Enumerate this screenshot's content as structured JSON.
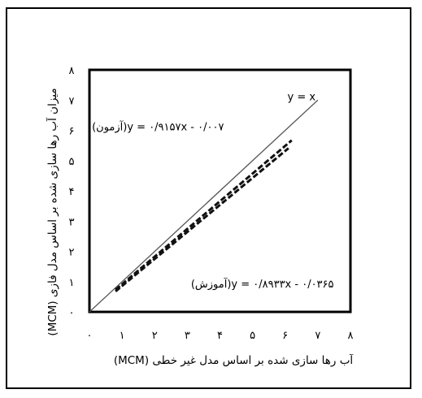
{
  "chart_data": {
    "type": "line",
    "xlabel": "آب رها سازی شده بر اساس مدل غیر خطی (MCM)",
    "ylabel": "میزان آب رها سازی شده بر اساس مدل فازی (MCM)",
    "xlim": [
      0,
      8
    ],
    "ylim": [
      0,
      8
    ],
    "x_ticks": [
      {
        "value": 0,
        "label": "۰"
      },
      {
        "value": 1,
        "label": "۱"
      },
      {
        "value": 2,
        "label": "۲"
      },
      {
        "value": 3,
        "label": "۳"
      },
      {
        "value": 4,
        "label": "۴"
      },
      {
        "value": 5,
        "label": "۵"
      },
      {
        "value": 6,
        "label": "۶"
      },
      {
        "value": 7,
        "label": "۷"
      },
      {
        "value": 8,
        "label": "۸"
      }
    ],
    "y_ticks": [
      {
        "value": 0,
        "label": "۰"
      },
      {
        "value": 1,
        "label": "۱"
      },
      {
        "value": 2,
        "label": "۲"
      },
      {
        "value": 3,
        "label": "۳"
      },
      {
        "value": 4,
        "label": "۴"
      },
      {
        "value": 5,
        "label": "۵"
      },
      {
        "value": 6,
        "label": "۶"
      },
      {
        "value": 7,
        "label": "۷"
      },
      {
        "value": 8,
        "label": "۸"
      }
    ],
    "grid": false,
    "series": [
      {
        "name": "y = x",
        "style": "solid",
        "color": "#555555",
        "x": [
          0,
          7
        ],
        "y": [
          0,
          7
        ]
      },
      {
        "name": "آزمون",
        "style": "dashed",
        "color": "#111111",
        "x": [
          0.8,
          6.2
        ],
        "y": [
          0.73,
          5.67
        ]
      },
      {
        "name": "آموزش",
        "style": "dashed",
        "color": "#111111",
        "x": [
          0.8,
          6.1
        ],
        "y": [
          0.68,
          5.41
        ]
      }
    ],
    "annotations": [
      {
        "text": "y = x",
        "x": 6.5,
        "y": 7.0
      },
      {
        "text": "(آزمون)y = ۰/۹۱۵۷x - ۰/۰۰۷",
        "x": 2.1,
        "y": 6.0
      },
      {
        "text": "(آموزش)y = ۰/۸۹۳۳x - ۰/۰۳۶۵",
        "x": 5.3,
        "y": 0.8
      }
    ]
  }
}
